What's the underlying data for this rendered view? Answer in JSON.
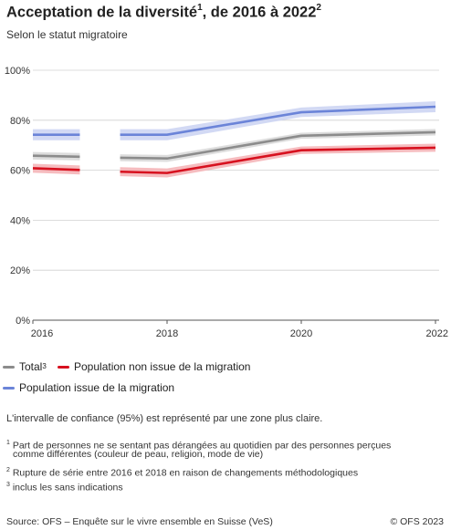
{
  "title": {
    "text": "Acceptation de la diversité",
    "sup1": "1",
    "rest": ", de 2016 à  2022",
    "sup2": "2"
  },
  "subtitle": "Selon le statut migratoire",
  "chart_data": {
    "type": "line",
    "title": "Acceptation de la diversité, de 2016 à 2022",
    "subtitle": "Selon le statut migratoire",
    "x": [
      2016,
      2018,
      2020,
      2022
    ],
    "x_tick_labels": [
      "2016",
      "2018",
      "2020",
      "2022"
    ],
    "y_tick_labels": [
      "0%",
      "20%",
      "40%",
      "60%",
      "80%",
      "100%"
    ],
    "ylim": [
      0,
      100
    ],
    "xlim": [
      2016,
      2022
    ],
    "grid": true,
    "legend_position": "bottom",
    "series": [
      {
        "name": "Total",
        "name_sup": "3",
        "color": "#8c8c8c",
        "band_color": "#d9d9d9",
        "segments": [
          {
            "x": [
              2016,
              2016.7
            ],
            "values": [
              65.8,
              65.4
            ],
            "ci_low": [
              64.3,
              63.9
            ],
            "ci_high": [
              67.3,
              66.9
            ]
          },
          {
            "x": [
              2017.3,
              2018,
              2020,
              2022
            ],
            "values": [
              65.0,
              64.7,
              73.8,
              75.2
            ],
            "ci_low": [
              63.6,
              63.3,
              72.6,
              73.9
            ],
            "ci_high": [
              66.4,
              66.1,
              75.0,
              76.5
            ]
          }
        ]
      },
      {
        "name": "Population non issue de la migration",
        "color": "#d7111f",
        "band_color": "#f5b5b8",
        "segments": [
          {
            "x": [
              2016,
              2016.7
            ],
            "values": [
              60.8,
              60.1
            ],
            "ci_low": [
              59.0,
              58.3
            ],
            "ci_high": [
              62.6,
              61.9
            ]
          },
          {
            "x": [
              2017.3,
              2018,
              2020,
              2022
            ],
            "values": [
              59.4,
              58.9,
              68.0,
              69.0
            ],
            "ci_low": [
              57.6,
              57.1,
              66.5,
              67.4
            ],
            "ci_high": [
              61.2,
              60.7,
              69.5,
              70.6
            ]
          }
        ]
      },
      {
        "name": "Population issue de la migration",
        "color": "#6b84d8",
        "band_color": "#cdd5f3",
        "segments": [
          {
            "x": [
              2016,
              2016.7
            ],
            "values": [
              74.2,
              74.2
            ],
            "ci_low": [
              72.0,
              72.0
            ],
            "ci_high": [
              76.4,
              76.4
            ]
          },
          {
            "x": [
              2017.3,
              2018,
              2020,
              2022
            ],
            "values": [
              74.2,
              74.2,
              83.2,
              85.4
            ],
            "ci_low": [
              72.0,
              72.0,
              81.3,
              83.2
            ],
            "ci_high": [
              76.4,
              76.4,
              85.1,
              87.6
            ]
          }
        ]
      }
    ]
  },
  "legend": {
    "total": "Total",
    "total_sup": "3",
    "non_migration": "Population non issue de la migration",
    "migration": "Population issue de la migration"
  },
  "note_ci": "L'intervalle de confiance (95%) est représenté par une zone plus claire.",
  "footnotes": {
    "f1_sup": "1",
    "f1_line1": "Part de personnes ne se sentant pas dérangées au quotidien par des personnes perçues",
    "f1_line2": "comme différentes (couleur de peau, religion, mode de vie)",
    "f2_sup": "2",
    "f2": "Rupture de série entre 2016 et 2018 en raison de changements méthodologiques",
    "f3_sup": "3",
    "f3": "inclus les sans indications"
  },
  "source": "Source: OFS – Enquête sur le vivre ensemble en Suisse (VeS)",
  "copyright": "© OFS 2023"
}
